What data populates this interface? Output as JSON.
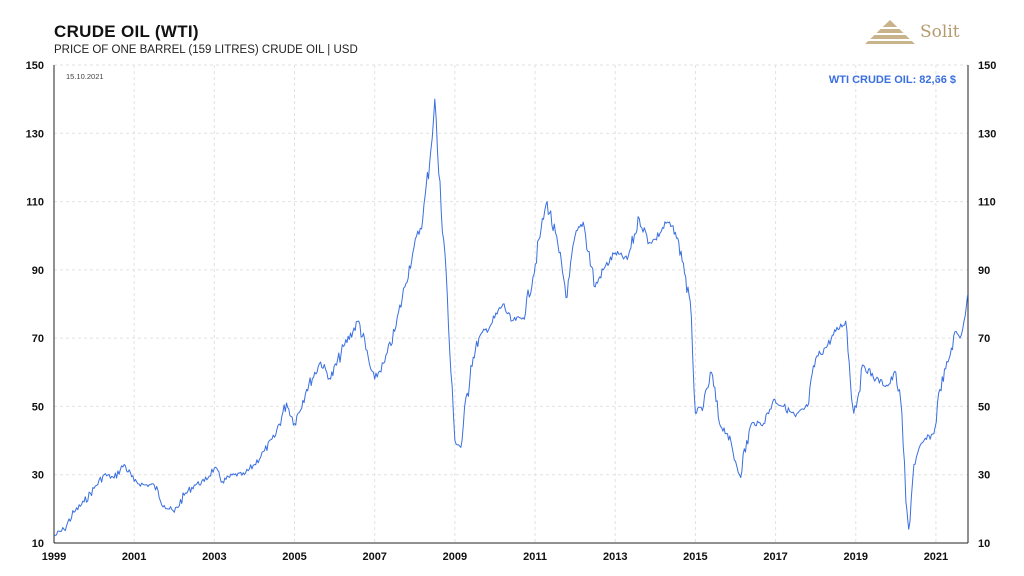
{
  "header": {
    "title": "CRUDE OIL (WTI)",
    "subtitle": "PRICE OF ONE BARREL (159 LITRES) CRUDE OIL | USD",
    "date": "15.10.2021",
    "current_label": "WTI CRUDE OIL: 82,66 $",
    "brand": "Solit"
  },
  "colors": {
    "line": "#3a6fe0",
    "brand": "#b49a6e",
    "grid": "#e2e2e2"
  },
  "chart_data": {
    "type": "line",
    "title": "CRUDE OIL (WTI)",
    "subtitle": "PRICE OF ONE BARREL (159 LITRES) CRUDE OIL | USD",
    "xlim": [
      1999,
      2021.8
    ],
    "ylim": [
      10,
      150
    ],
    "x_ticks": [
      "1999",
      "2001",
      "2003",
      "2005",
      "2007",
      "2009",
      "2011",
      "2013",
      "2015",
      "2017",
      "2019",
      "2021"
    ],
    "y_ticks": [
      "10",
      "30",
      "50",
      "70",
      "90",
      "110",
      "130",
      "150"
    ],
    "grid": true,
    "series": [
      {
        "x": [
          1999.0,
          1999.25,
          1999.5,
          1999.75,
          2000.0,
          2000.25,
          2000.5,
          2000.75,
          2001.0,
          2001.25,
          2001.5,
          2001.75,
          2002.0,
          2002.25,
          2002.5,
          2002.75,
          2003.0,
          2003.2,
          2003.5,
          2003.75,
          2004.0,
          2004.25,
          2004.5,
          2004.8,
          2005.0,
          2005.3,
          2005.65,
          2005.9,
          2006.25,
          2006.6,
          2006.9,
          2007.0,
          2007.25,
          2007.5,
          2007.75,
          2007.95,
          2008.2,
          2008.4,
          2008.5,
          2008.6,
          2008.75,
          2008.9,
          2009.0,
          2009.15,
          2009.4,
          2009.6,
          2009.9,
          2010.2,
          2010.4,
          2010.7,
          2010.95,
          2011.15,
          2011.3,
          2011.6,
          2011.8,
          2012.0,
          2012.2,
          2012.5,
          2012.7,
          2013.0,
          2013.3,
          2013.6,
          2013.85,
          2014.0,
          2014.3,
          2014.5,
          2014.7,
          2014.9,
          2015.0,
          2015.2,
          2015.4,
          2015.6,
          2015.8,
          2016.0,
          2016.1,
          2016.4,
          2016.7,
          2016.95,
          2017.2,
          2017.5,
          2017.8,
          2018.0,
          2018.3,
          2018.5,
          2018.75,
          2018.95,
          2019.2,
          2019.5,
          2019.8,
          2020.0,
          2020.15,
          2020.25,
          2020.32,
          2020.45,
          2020.7,
          2020.95,
          2021.1,
          2021.3,
          2021.5,
          2021.6,
          2021.7,
          2021.79
        ],
        "values": [
          12,
          14,
          19,
          22,
          26,
          30,
          29,
          33,
          28,
          27,
          27,
          21,
          19,
          24,
          27,
          28,
          32,
          28,
          30,
          30,
          33,
          37,
          41,
          51,
          45,
          55,
          63,
          58,
          68,
          75,
          61,
          58,
          63,
          72,
          85,
          95,
          105,
          125,
          140,
          118,
          95,
          60,
          40,
          38,
          62,
          70,
          74,
          80,
          75,
          76,
          88,
          102,
          110,
          95,
          82,
          100,
          104,
          85,
          90,
          95,
          93,
          105,
          98,
          99,
          104,
          101,
          92,
          76,
          48,
          50,
          60,
          45,
          42,
          34,
          30,
          45,
          45,
          52,
          50,
          47,
          50,
          64,
          68,
          72,
          75,
          48,
          62,
          58,
          56,
          60,
          48,
          22,
          14,
          33,
          40,
          42,
          55,
          63,
          72,
          70,
          75,
          82.66
        ]
      }
    ]
  }
}
